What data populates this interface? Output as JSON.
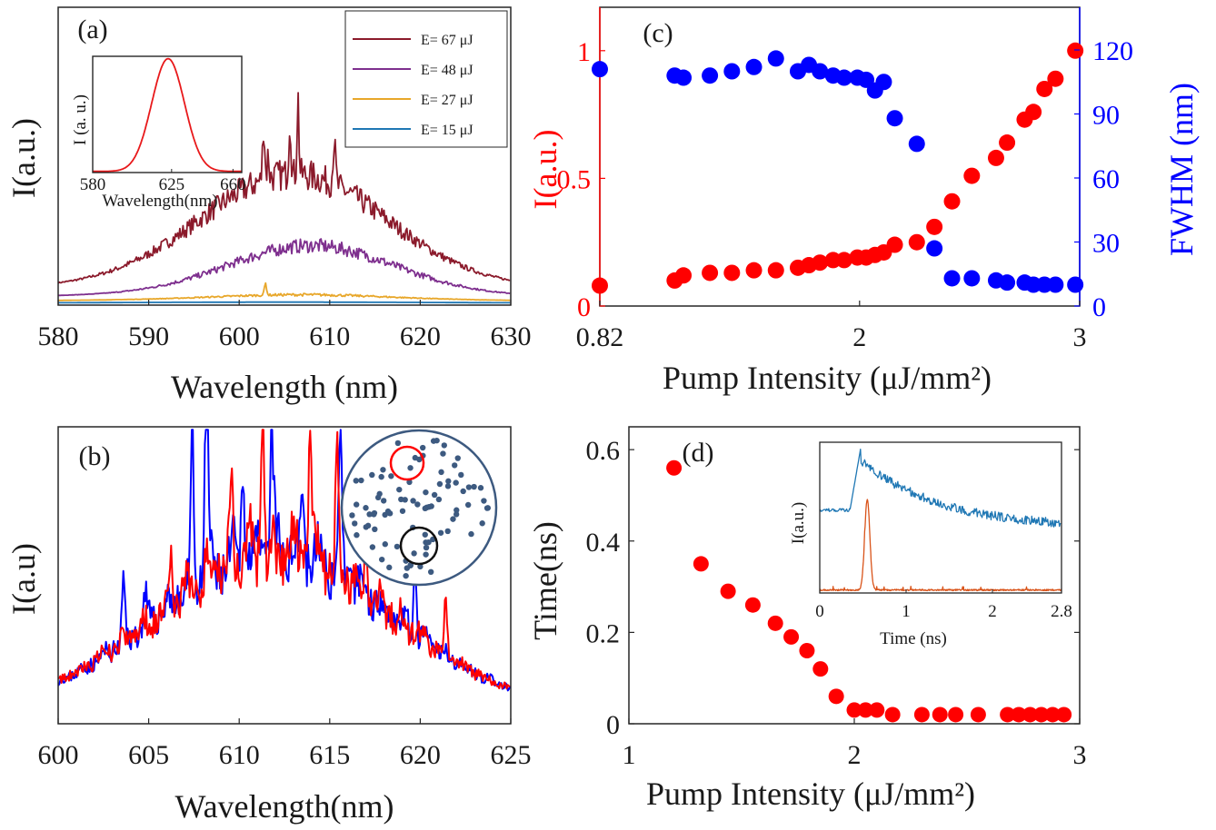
{
  "chart_data": [
    {
      "panel": "(a)",
      "type": "line",
      "xlabel": "Wavelength (nm)",
      "ylabel": "I(a.u.)",
      "xlim": [
        580,
        630
      ],
      "ylim": [
        0,
        1
      ],
      "xticks": [
        "580",
        "590",
        "600",
        "610",
        "620",
        "630"
      ],
      "legend_position": "top-right",
      "series": [
        {
          "name": "E= 67 μJ",
          "color": "#8b1a2b",
          "peak_x": 604,
          "peak_y": 0.92,
          "base_y": 0.08,
          "width": 10
        },
        {
          "name": "E= 48 μJ",
          "color": "#7e2f8e",
          "peak_x": 606,
          "peak_y": 0.2,
          "base_y": 0.04,
          "width": 9
        },
        {
          "name": "E= 27 μJ",
          "color": "#e8a72a",
          "peak_x": 605,
          "peak_y": 0.035,
          "base_y": 0.02,
          "width": 9
        },
        {
          "name": "E= 15 μJ",
          "color": "#1f77b4",
          "peak_x": 605,
          "peak_y": 0.01,
          "base_y": 0.01,
          "width": 9
        }
      ],
      "inset": {
        "type": "line",
        "xlabel": "Wavelength(nm)",
        "ylabel": "I (a. u.)",
        "xlim": [
          580,
          665
        ],
        "xticks": [
          "580",
          "625",
          "660"
        ],
        "color": "#e8191b",
        "peak_x": 623,
        "fwhm": 22
      }
    },
    {
      "panel": "(b)",
      "type": "line",
      "xlabel": "Wavelength(nm)",
      "ylabel": "I(a.u)",
      "xlim": [
        600,
        625
      ],
      "xticks": [
        "600",
        "605",
        "610",
        "615",
        "620",
        "625"
      ],
      "series": [
        {
          "color": "#0000ff",
          "center": 612,
          "width": 6.5
        },
        {
          "color": "#ff0000",
          "center": 612,
          "width": 6.5
        }
      ],
      "inset_description": "circle"
    },
    {
      "panel": "(c)",
      "type": "scatter",
      "xlabel": "Pump Intensity (μJ/mm²)",
      "ylabel_left": "I(a.u.)",
      "ylabel_right": "FWHM (nm)",
      "xlim": [
        0.82,
        3
      ],
      "xticks": [
        "0.82",
        "2",
        "3"
      ],
      "ylim_left": [
        0,
        1.17
      ],
      "yticks_left": [
        "0",
        "0.5",
        "1"
      ],
      "ylim_right": [
        0,
        140
      ],
      "yticks_right": [
        "0",
        "30",
        "60",
        "90",
        "120"
      ],
      "left_color": "#ff0000",
      "right_color": "#0000ff",
      "x": [
        0.82,
        1.16,
        1.2,
        1.32,
        1.42,
        1.52,
        1.62,
        1.72,
        1.77,
        1.82,
        1.88,
        1.93,
        1.99,
        2.03,
        2.07,
        2.11,
        2.16,
        2.26,
        2.34,
        2.42,
        2.51,
        2.62,
        2.67,
        2.75,
        2.79,
        2.84,
        2.89,
        2.98
      ],
      "intensity": [
        0.08,
        0.1,
        0.12,
        0.13,
        0.13,
        0.14,
        0.14,
        0.15,
        0.16,
        0.17,
        0.18,
        0.18,
        0.19,
        0.19,
        0.2,
        0.21,
        0.24,
        0.25,
        0.31,
        0.41,
        0.51,
        0.58,
        0.64,
        0.73,
        0.76,
        0.85,
        0.89,
        1.0
      ],
      "fwhm": [
        111,
        108,
        107,
        108,
        110,
        112,
        116,
        110,
        113,
        110,
        108,
        107,
        107,
        106,
        101,
        105,
        88,
        76,
        27,
        13,
        13,
        12,
        11,
        11,
        10,
        10,
        10,
        10
      ]
    },
    {
      "panel": "(d)",
      "type": "scatter",
      "xlabel": "Pump Intensity (μJ/mm²)",
      "ylabel": "Time(ns)",
      "xlim": [
        1,
        3
      ],
      "xticks": [
        "1",
        "2",
        "3"
      ],
      "ylim": [
        0,
        0.65
      ],
      "yticks": [
        "0",
        "0.2",
        "0.4",
        "0.6"
      ],
      "color": "#ff0000",
      "x": [
        1.2,
        1.32,
        1.44,
        1.55,
        1.65,
        1.72,
        1.79,
        1.85,
        1.92,
        2.0,
        2.05,
        2.1,
        2.17,
        2.3,
        2.38,
        2.45,
        2.55,
        2.68,
        2.73,
        2.78,
        2.83,
        2.88,
        2.93
      ],
      "y": [
        0.56,
        0.35,
        0.29,
        0.26,
        0.22,
        0.19,
        0.16,
        0.12,
        0.06,
        0.03,
        0.03,
        0.03,
        0.02,
        0.02,
        0.02,
        0.02,
        0.02,
        0.02,
        0.02,
        0.02,
        0.02,
        0.02,
        0.02
      ],
      "inset": {
        "type": "line",
        "xlabel": "Time (ns)",
        "ylabel": "I(a.u.)",
        "xlim": [
          0,
          2.8
        ],
        "xticks": [
          "0",
          "1",
          "2",
          "2.8"
        ],
        "series": [
          {
            "color": "#1f77b4",
            "peak_x": 0.48,
            "decay": 0.9
          },
          {
            "color": "#d95319",
            "peak_x": 0.55,
            "decay": 0.03
          }
        ]
      }
    }
  ]
}
